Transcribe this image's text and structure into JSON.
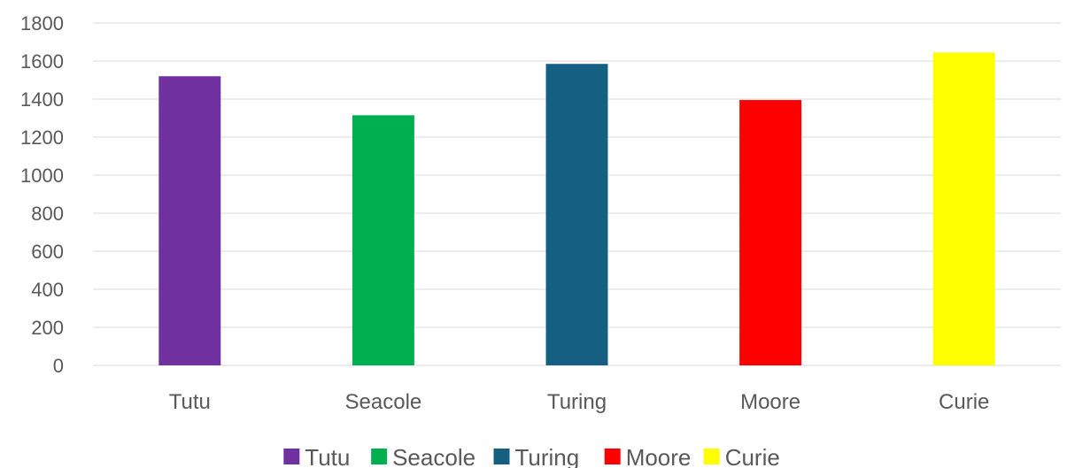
{
  "chart_data": {
    "type": "bar",
    "title": "",
    "xlabel": "",
    "ylabel": "",
    "categories": [
      "Tutu",
      "Seacole",
      "Turing",
      "Moore",
      "Curie"
    ],
    "values": [
      1520,
      1315,
      1585,
      1395,
      1645
    ],
    "colors": [
      "#7030A0",
      "#00B050",
      "#156082",
      "#FF0000",
      "#FFFF00"
    ],
    "ylim": [
      0,
      1800
    ],
    "yticks": [
      0,
      200,
      400,
      600,
      800,
      1000,
      1200,
      1400,
      1600,
      1800
    ],
    "grid": true,
    "legend": {
      "position": "bottom",
      "entries": [
        "Tutu",
        "Seacole",
        "Turing",
        "Moore",
        "Curie"
      ]
    }
  }
}
